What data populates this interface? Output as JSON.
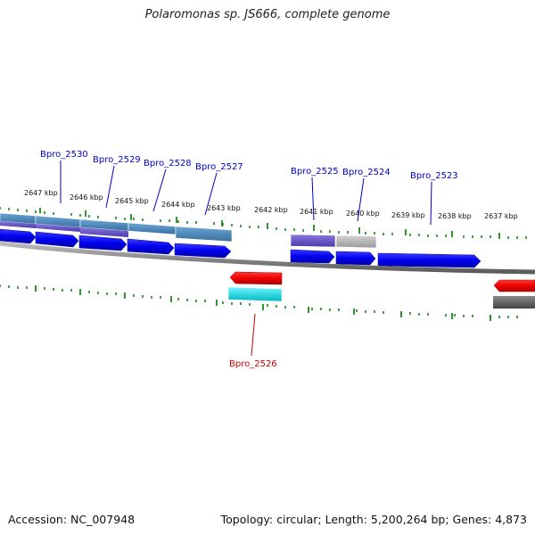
{
  "title": "Polaromonas sp. JS666, complete genome",
  "footer": {
    "accession": "Accession: NC_007948",
    "summary": "Topology: circular; Length: 5,200,264 bp; Genes: 4,873"
  },
  "ticks": [
    "2647 kbp",
    "2646 kbp",
    "2645 kbp",
    "2644 kbp",
    "2643 kbp",
    "2642 kbp",
    "2641 kbp",
    "2640 kbp",
    "2639 kbp",
    "2638 kbp",
    "2637 kbp"
  ],
  "genes": {
    "g2530": "Bpro_2530",
    "g2529": "Bpro_2529",
    "g2528": "Bpro_2528",
    "g2527": "Bpro_2527",
    "g2525": "Bpro_2525",
    "g2524": "Bpro_2524",
    "g2523": "Bpro_2523",
    "g2526": "Bpro_2526"
  },
  "colors": {
    "forward_cds": "#0000ee",
    "reverse_cds": "#ee0000",
    "forward_label": "#0000cc",
    "reverse_label": "#cc0000",
    "cog_steelblue": "#4a86b8",
    "cog_slateblue": "#6a5acd",
    "cog_gray": "#b4b4b4",
    "cog_cyan": "#00e5ee",
    "cog_darkgray": "#666666",
    "backbone": "#8c8c8c",
    "tick": "#1a8a1a"
  }
}
